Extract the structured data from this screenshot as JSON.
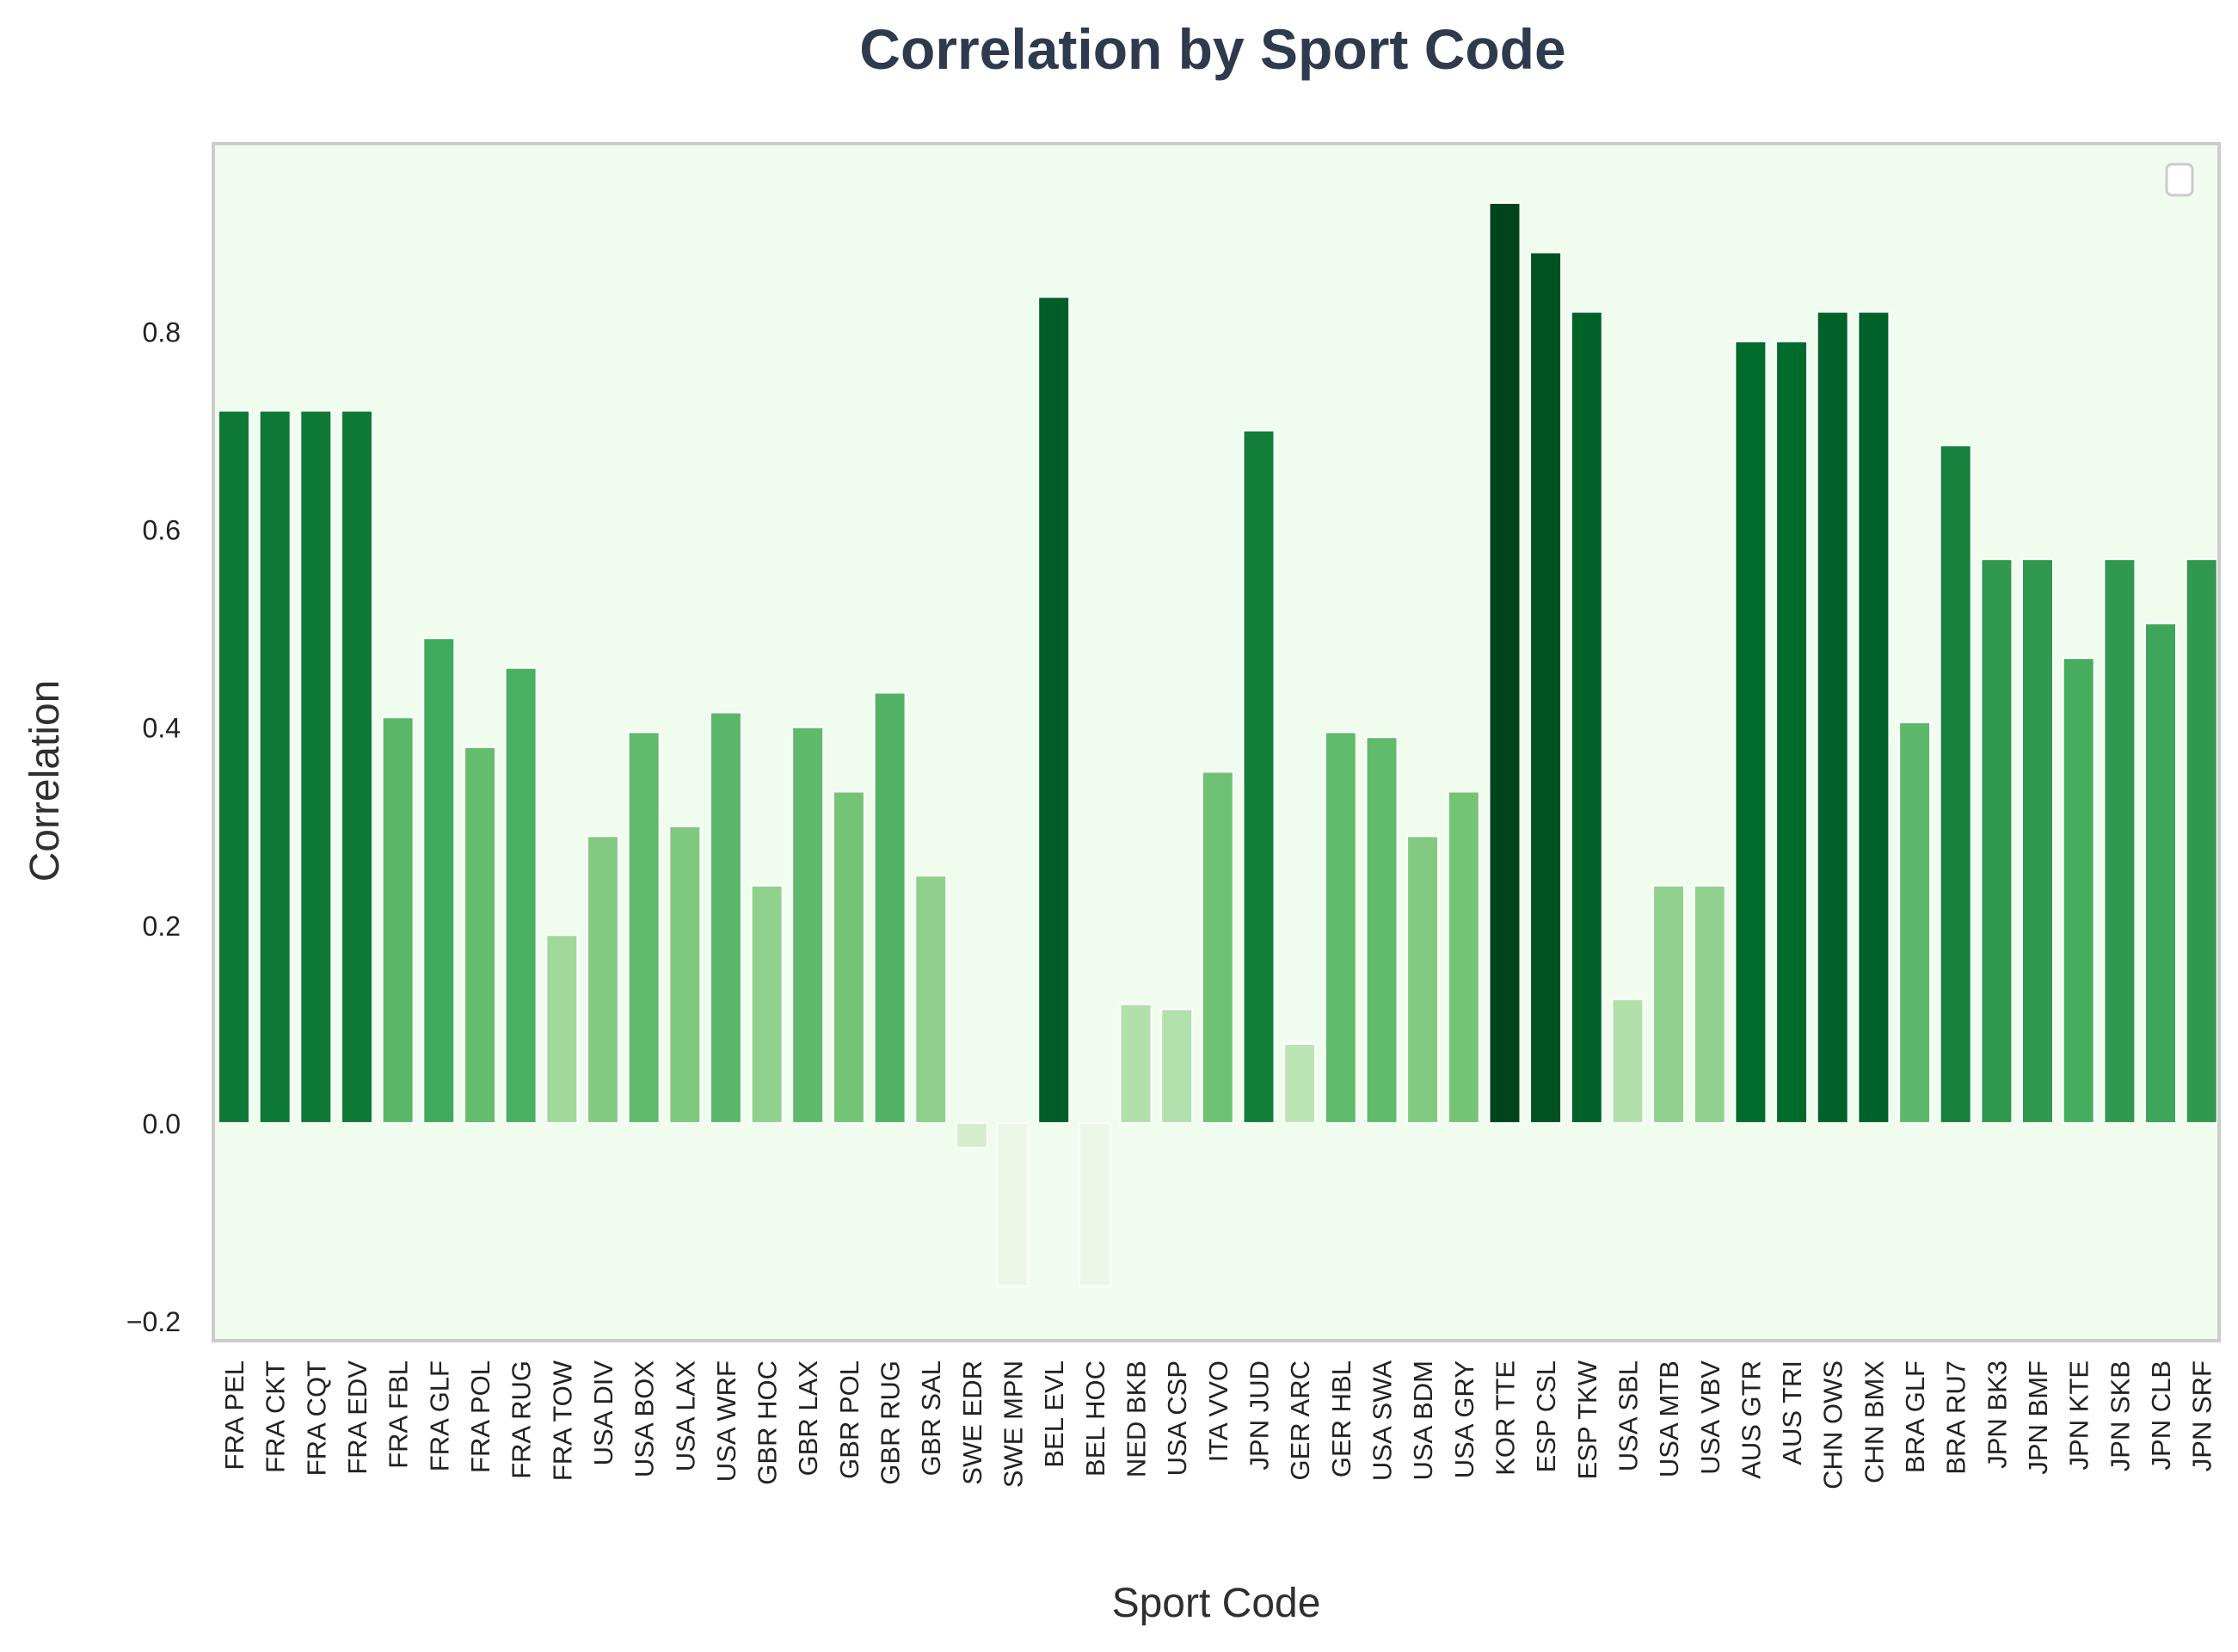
{
  "chart_data": {
    "type": "bar",
    "title": "Correlation by Sport Code",
    "xlabel": "Sport Code",
    "ylabel": "Correlation",
    "ylim": [
      -0.22,
      0.99
    ],
    "yticks": [
      -0.2,
      0.0,
      0.2,
      0.4,
      0.6,
      0.8
    ],
    "ytick_labels": [
      "−0.2",
      "0.0",
      "0.2",
      "0.4",
      "0.6",
      "0.8"
    ],
    "grid": false,
    "legend": "top-right (empty)",
    "colors": {
      "plot_background": "#f0fdee",
      "frame": "#cccccc",
      "colormap": "Greens",
      "title": "#2e3a4e"
    },
    "categories": [
      "FRA PEL",
      "FRA CKT",
      "FRA CQT",
      "FRA EDV",
      "FRA FBL",
      "FRA GLF",
      "FRA POL",
      "FRA RUG",
      "FRA TOW",
      "USA DIV",
      "USA BOX",
      "USA LAX",
      "USA WRF",
      "GBR HOC",
      "GBR LAX",
      "GBR POL",
      "GBR RUG",
      "GBR SAL",
      "SWE EDR",
      "SWE MPN",
      "BEL EVL",
      "BEL HOC",
      "NED BKB",
      "USA CSP",
      "ITA VVO",
      "JPN JUD",
      "GER ARC",
      "GER HBL",
      "USA SWA",
      "USA BDM",
      "USA GRY",
      "KOR TTE",
      "ESP CSL",
      "ESP TKW",
      "USA SBL",
      "USA MTB",
      "USA VBV",
      "AUS GTR",
      "AUS TRI",
      "CHN OWS",
      "CHN BMX",
      "BRA GLF",
      "BRA RU7",
      "JPN BK3",
      "JPN BMF",
      "JPN KTE",
      "JPN SKB",
      "JPN CLB",
      "JPN SRF"
    ],
    "values": [
      0.72,
      0.72,
      0.72,
      0.72,
      0.41,
      0.49,
      0.38,
      0.46,
      0.19,
      0.29,
      0.395,
      0.3,
      0.415,
      0.24,
      0.4,
      0.335,
      0.435,
      0.25,
      -0.025,
      -0.165,
      0.835,
      -0.165,
      0.12,
      0.115,
      0.355,
      0.7,
      0.08,
      0.395,
      0.39,
      0.29,
      0.335,
      0.93,
      0.88,
      0.82,
      0.125,
      0.24,
      0.24,
      0.79,
      0.79,
      0.82,
      0.82,
      0.405,
      0.685,
      0.57,
      0.57,
      0.47,
      0.57,
      0.505,
      0.57
    ]
  }
}
